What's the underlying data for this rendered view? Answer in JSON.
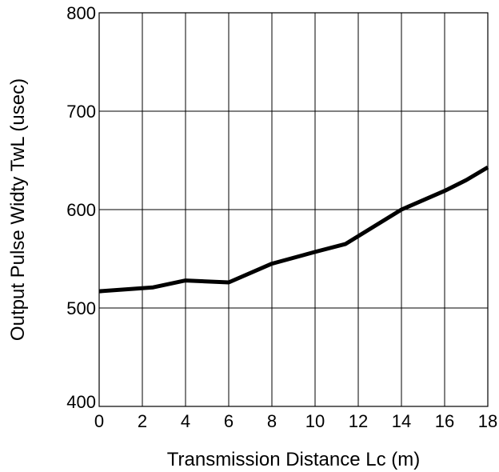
{
  "chart_data": {
    "type": "line",
    "title": "",
    "xlabel": "Transmission Distance Lc (m)",
    "ylabel": "Output Pulse Widty TwL (usec)",
    "xlim": [
      0,
      18
    ],
    "ylim": [
      400,
      800
    ],
    "xticks": [
      0,
      2,
      4,
      6,
      8,
      10,
      12,
      14,
      16,
      18
    ],
    "xtick_labels": [
      "0",
      "2",
      "4",
      "6",
      "8",
      "10",
      "12",
      "14",
      "16",
      "18"
    ],
    "yticks": [
      400,
      500,
      600,
      700,
      800
    ],
    "ytick_labels": [
      "400",
      "500",
      "600",
      "700",
      "800"
    ],
    "grid": true,
    "series": [
      {
        "color": "#000000",
        "x": [
          0,
          2.5,
          4,
          6,
          8,
          10,
          11.4,
          14,
          16,
          17,
          18
        ],
        "y": [
          517,
          521,
          528,
          526,
          545,
          557,
          565,
          600,
          619,
          630,
          643
        ]
      }
    ]
  }
}
